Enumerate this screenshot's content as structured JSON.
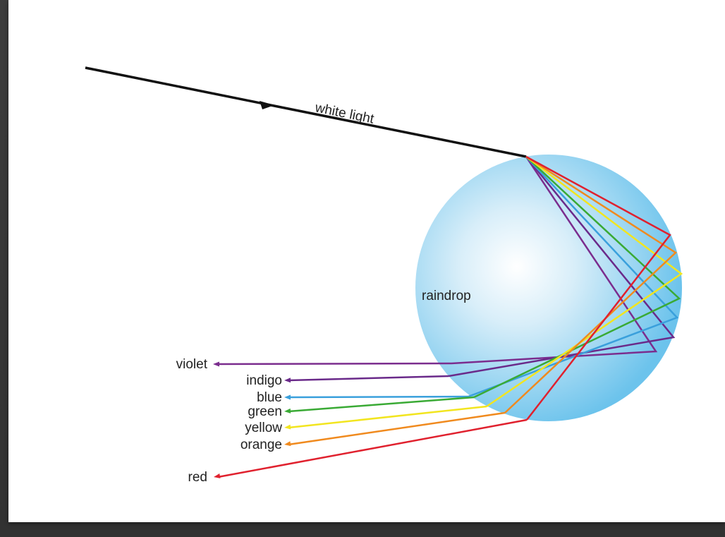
{
  "labels": {
    "incoming": "white light",
    "drop": "raindrop"
  },
  "colors": {
    "incoming": "#111111",
    "drop_center": "#ffffff",
    "drop_edge": "#6cc3ec"
  },
  "rays": [
    {
      "name": "violet",
      "color": "#7b2d8e"
    },
    {
      "name": "indigo",
      "color": "#6a2a8a"
    },
    {
      "name": "blue",
      "color": "#3aa0dc"
    },
    {
      "name": "green",
      "color": "#3aaa35"
    },
    {
      "name": "yellow",
      "color": "#f2e51f"
    },
    {
      "name": "orange",
      "color": "#f08a1e"
    },
    {
      "name": "red",
      "color": "#e0212e"
    }
  ]
}
